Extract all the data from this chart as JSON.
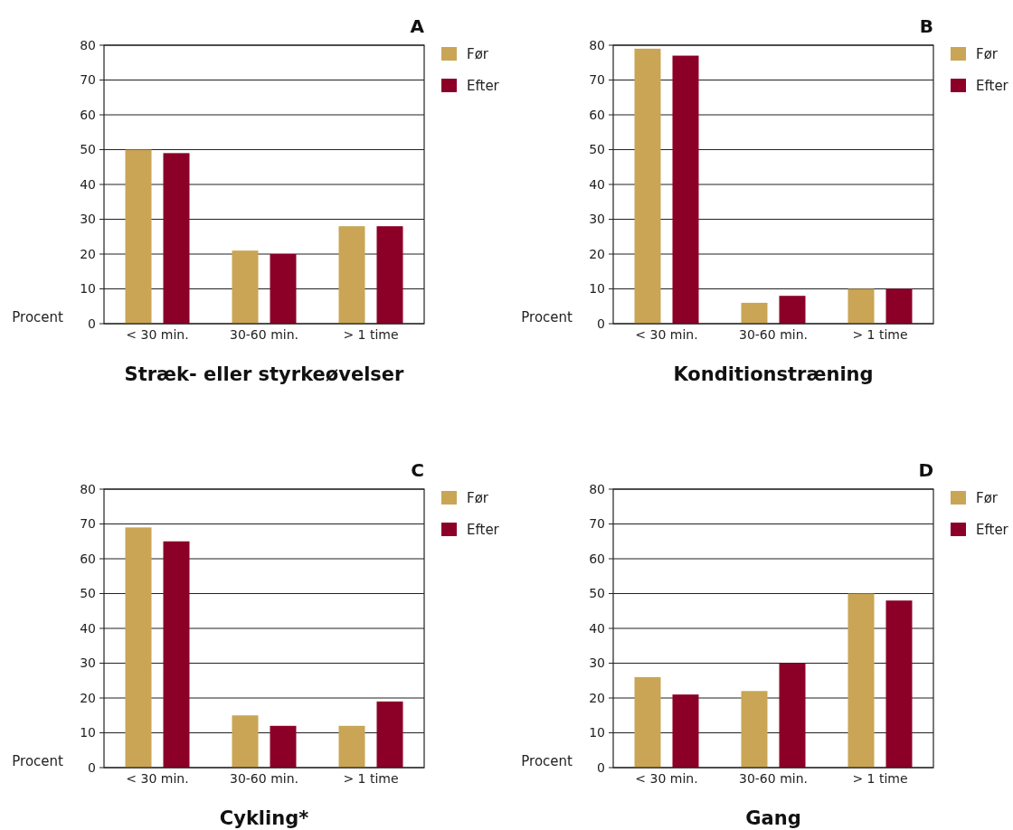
{
  "chart_data": [
    {
      "type": "bar",
      "subtitle": "A",
      "title": "Stræk- eller styrkeøvelser",
      "ylabel": "Procent",
      "categories": [
        "< 30 min.",
        "30-60 min.",
        "> 1 time"
      ],
      "series": [
        {
          "name": "Før",
          "color": "#c9a555",
          "values": [
            50,
            21,
            28
          ]
        },
        {
          "name": "Efter",
          "color": "#8c0028",
          "values": [
            49,
            20,
            28
          ]
        }
      ],
      "ylim": [
        0,
        80
      ],
      "yticks": [
        0,
        10,
        20,
        30,
        40,
        50,
        60,
        70,
        80
      ],
      "grid": "y",
      "legend": "top right"
    },
    {
      "type": "bar",
      "subtitle": "B",
      "title": "Konditionstræning",
      "ylabel": "Procent",
      "categories": [
        "< 30 min.",
        "30-60 min.",
        "> 1 time"
      ],
      "series": [
        {
          "name": "Før",
          "color": "#c9a555",
          "values": [
            79,
            6,
            10
          ]
        },
        {
          "name": "Efter",
          "color": "#8c0028",
          "values": [
            77,
            8,
            10
          ]
        }
      ],
      "ylim": [
        0,
        80
      ],
      "yticks": [
        0,
        10,
        20,
        30,
        40,
        50,
        60,
        70,
        80
      ],
      "grid": "y",
      "legend": "top right"
    },
    {
      "type": "bar",
      "subtitle": "C",
      "title": "Cykling*",
      "ylabel": "Procent",
      "categories": [
        "< 30 min.",
        "30-60 min.",
        "> 1 time"
      ],
      "series": [
        {
          "name": "Før",
          "color": "#c9a555",
          "values": [
            69,
            15,
            12
          ]
        },
        {
          "name": "Efter",
          "color": "#8c0028",
          "values": [
            65,
            12,
            19
          ]
        }
      ],
      "ylim": [
        0,
        80
      ],
      "yticks": [
        0,
        10,
        20,
        30,
        40,
        50,
        60,
        70,
        80
      ],
      "grid": "y",
      "legend": "top right"
    },
    {
      "type": "bar",
      "subtitle": "D",
      "title": "Gang",
      "ylabel": "Procent",
      "categories": [
        "< 30 min.",
        "30-60 min.",
        "> 1 time"
      ],
      "series": [
        {
          "name": "Før",
          "color": "#c9a555",
          "values": [
            26,
            22,
            50
          ]
        },
        {
          "name": "Efter",
          "color": "#8c0028",
          "values": [
            21,
            30,
            48
          ]
        }
      ],
      "ylim": [
        0,
        80
      ],
      "yticks": [
        0,
        10,
        20,
        30,
        40,
        50,
        60,
        70,
        80
      ],
      "grid": "y",
      "legend": "top right"
    }
  ]
}
